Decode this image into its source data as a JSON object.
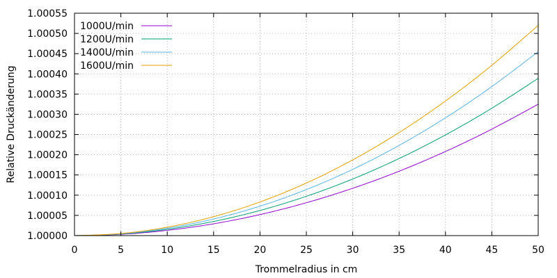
{
  "chart_data": {
    "type": "line",
    "title": "",
    "xlabel": "Trommelradius in cm",
    "ylabel": "Relative Druckänderung",
    "xlim": [
      0,
      50
    ],
    "ylim": [
      1.0,
      1.00055
    ],
    "grid": true,
    "legend_position": "top-left",
    "x_ticks": [
      0,
      5,
      10,
      15,
      20,
      25,
      30,
      35,
      40,
      45,
      50
    ],
    "x_tick_labels": [
      "0",
      "5",
      "10",
      "15",
      "20",
      "25",
      "30",
      "35",
      "40",
      "45",
      "50"
    ],
    "y_ticks": [
      1.0,
      1.00005,
      1.0001,
      1.00015,
      1.0002,
      1.00025,
      1.0003,
      1.00035,
      1.0004,
      1.00045,
      1.0005,
      1.00055
    ],
    "y_tick_labels": [
      "1.00000",
      "1.00005",
      "1.00010",
      "1.00015",
      "1.00020",
      "1.00025",
      "1.00030",
      "1.00035",
      "1.00040",
      "1.00045",
      "1.00050",
      "1.00055"
    ],
    "x": [
      0,
      5,
      10,
      15,
      20,
      25,
      30,
      35,
      40,
      45,
      50
    ],
    "series": [
      {
        "name": "1000U/min",
        "color": "#9400d3",
        "values": [
          1.0,
          1.0000032,
          1.000013,
          1.0000292,
          1.000052,
          1.0000813,
          1.000117,
          1.0001592,
          1.000208,
          1.0002633,
          1.000325
        ]
      },
      {
        "name": "1200U/min",
        "color": "#009e73",
        "values": [
          1.0,
          1.0000039,
          1.0000156,
          1.000035,
          1.0000622,
          1.0000972,
          1.00014,
          1.0001906,
          1.000249,
          1.0003151,
          1.000389
        ]
      },
      {
        "name": "1400U/min",
        "color": "#56b4e9",
        "values": [
          1.0,
          1.0000045,
          1.0000182,
          1.000041,
          1.0000728,
          1.0001138,
          1.0001638,
          1.000223,
          1.0002912,
          1.0003686,
          1.000455
        ]
      },
      {
        "name": "1600U/min",
        "color": "#e69f00",
        "values": [
          1.0,
          1.0000052,
          1.0000208,
          1.0000468,
          1.0000832,
          1.00013,
          1.0001872,
          1.0002548,
          1.0003328,
          1.0004212,
          1.00052
        ]
      }
    ]
  }
}
